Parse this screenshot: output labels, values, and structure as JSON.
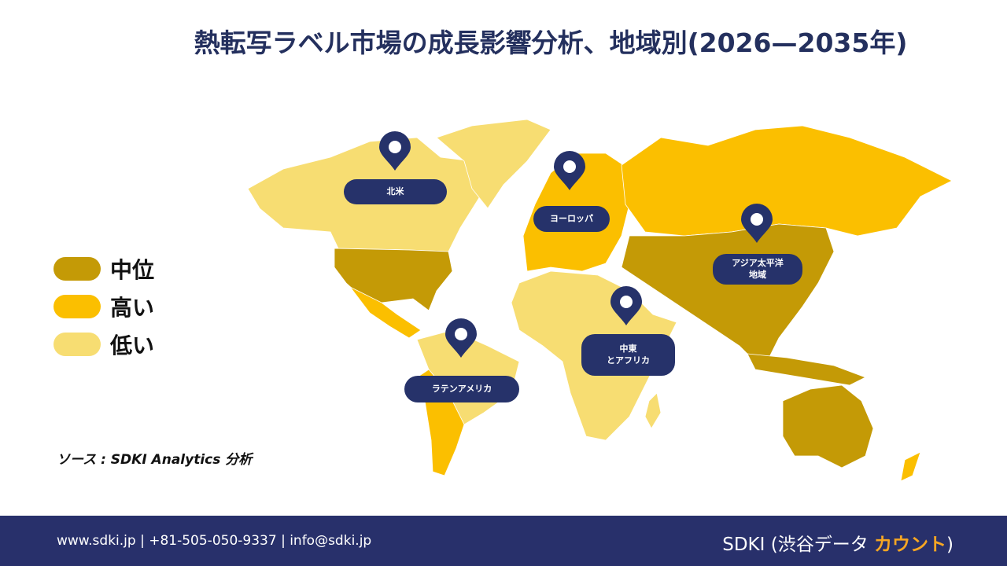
{
  "header": {
    "title": "熱転写ラベル市場の成長影響分析、地域別(2026—2035年)"
  },
  "legend": [
    {
      "label": "中位",
      "color": "#c49a06"
    },
    {
      "label": "高い",
      "color": "#fbbf00"
    },
    {
      "label": "低い",
      "color": "#f7dd72"
    }
  ],
  "regions": [
    {
      "lines": [
        "北米"
      ]
    },
    {
      "lines": [
        "ヨーロッパ"
      ]
    },
    {
      "lines": [
        "アジア太平洋",
        "地域"
      ]
    },
    {
      "lines": [
        "中東",
        "とアフリカ"
      ]
    },
    {
      "lines": [
        "ラテンアメリカ"
      ]
    }
  ],
  "source": "ソース : SDKI Analytics 分析",
  "footer": {
    "contact": "www.sdki.jp | +81-505-050-9337 | info@sdki.jp",
    "brand_prefix": "SDKI (渋谷データ ",
    "brand_highlight": "カウント",
    "brand_suffix": ")"
  }
}
